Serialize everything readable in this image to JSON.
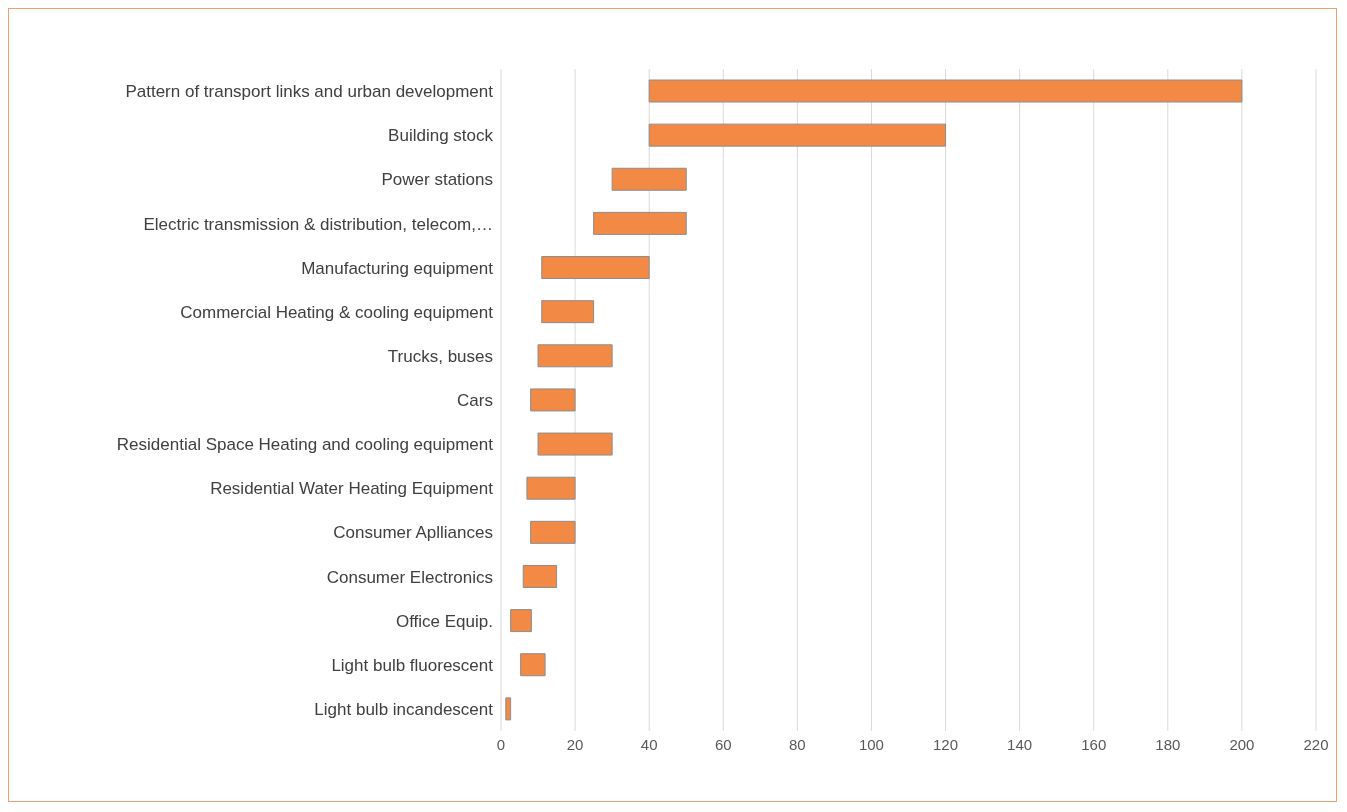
{
  "chart_data": {
    "type": "bar",
    "orientation": "horizontal",
    "categories": [
      "Pattern of transport links and urban development",
      "Building stock",
      "Power stations",
      "Electric transmission & distribution, telecom,…",
      "Manufacturing equipment",
      "Commercial Heating & cooling equipment",
      "Trucks, buses",
      "Cars",
      "Residential Space Heating and cooling equipment",
      "Residential Water Heating Equipment",
      "Consumer Aplliances",
      "Consumer Electronics",
      "Office Equip.",
      "Light bulb fluorescent",
      "Light bulb incandescent"
    ],
    "base": [
      40,
      40,
      30,
      25,
      11,
      11,
      10,
      8,
      10,
      7,
      8,
      6,
      2.6,
      5.3,
      1.3
    ],
    "values": [
      160,
      80,
      20,
      25,
      29,
      14,
      20,
      12,
      20,
      13,
      12,
      9,
      5.6,
      6.6,
      1.3
    ],
    "color": "#f28a45",
    "xlim": [
      0,
      220
    ],
    "xticks": [
      0,
      20,
      40,
      60,
      80,
      100,
      120,
      140,
      160,
      180,
      200,
      220
    ],
    "grid": "x"
  }
}
